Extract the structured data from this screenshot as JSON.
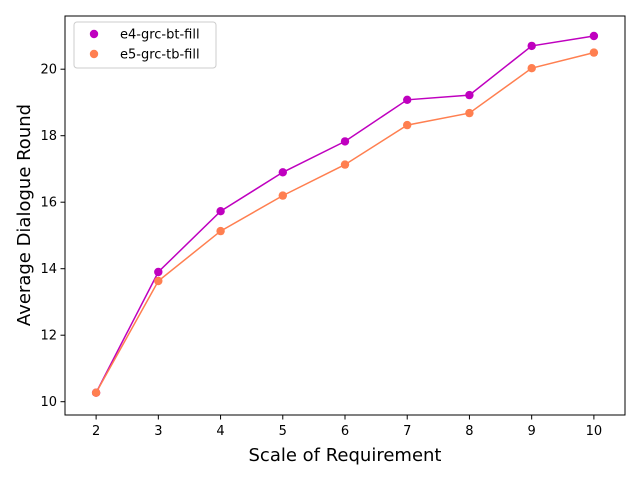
{
  "chart_data": {
    "type": "line",
    "title": "",
    "xlabel": "Scale of Requirement",
    "ylabel": "Average Dialogue Round",
    "x": [
      2,
      3,
      4,
      5,
      6,
      7,
      8,
      9,
      10
    ],
    "xlim": [
      1.5,
      10.5
    ],
    "ylim": [
      9.6,
      21.6
    ],
    "xticks": [
      2,
      3,
      4,
      5,
      6,
      7,
      8,
      9,
      10
    ],
    "yticks": [
      10,
      12,
      14,
      16,
      18,
      20
    ],
    "grid": false,
    "legend_position": "top-left",
    "series": [
      {
        "name": "e4-grc-bt-fill",
        "color": "#bf00bf",
        "values": [
          10.27,
          13.9,
          15.73,
          16.9,
          17.83,
          19.08,
          19.22,
          20.7,
          21.0
        ]
      },
      {
        "name": "e5-grc-tb-fill",
        "color": "#ff7f50",
        "values": [
          10.27,
          13.63,
          15.13,
          16.2,
          17.13,
          18.32,
          18.68,
          20.03,
          20.5
        ]
      }
    ]
  }
}
